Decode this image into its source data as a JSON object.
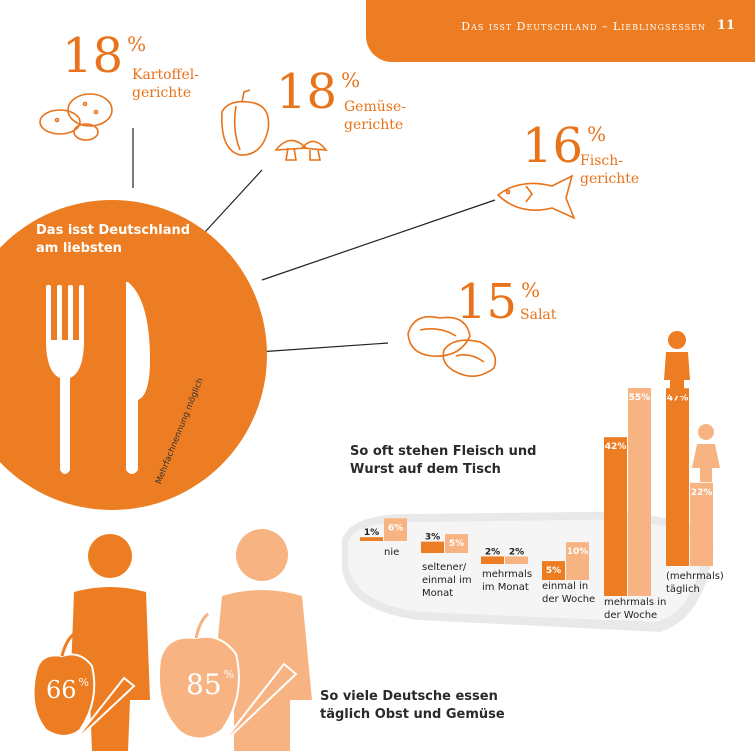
{
  "header": {
    "title": "Das isst Deutschland – Lieblingsessen",
    "page_number": "11"
  },
  "plate": {
    "title": "Das isst Deutschland am liebsten",
    "note": "Mehrfachnennung möglich"
  },
  "dishes": [
    {
      "value": "18",
      "unit": "%",
      "label": "Kartoffel-\ngerichte"
    },
    {
      "value": "18",
      "unit": "%",
      "label": "Gemüse-\ngerichte"
    },
    {
      "value": "16",
      "unit": "%",
      "label": "Fisch-\ngerichte"
    },
    {
      "value": "15",
      "unit": "%",
      "label": "Salat"
    }
  ],
  "chart_data": {
    "type": "bar",
    "title": "So oft stehen Fleisch und Wurst auf dem Tisch",
    "categories": [
      "nie",
      "seltener/ einmal im Monat",
      "mehrmals im Monat",
      "einmal in der Woche",
      "mehrmals in der Woche",
      "(mehrmals) täglich"
    ],
    "series": [
      {
        "values": [
          1,
          3,
          2,
          5,
          42,
          47
        ],
        "color": "#ec7d22"
      },
      {
        "values": [
          6,
          5,
          2,
          10,
          55,
          22
        ],
        "color": "#f7b482"
      }
    ],
    "value_labels": [
      [
        "1%",
        "6%"
      ],
      [
        "3%",
        "5%"
      ],
      [
        "2%",
        "2%"
      ],
      [
        "5%",
        "10%"
      ],
      [
        "42%",
        "55%"
      ],
      [
        "47%",
        "22%"
      ]
    ],
    "ylim": [
      0,
      55
    ]
  },
  "fruit": {
    "title": "So viele Deutsche essen täglich Obst und Gemüse",
    "men": {
      "value": "66",
      "unit": "%"
    },
    "women": {
      "value": "85",
      "unit": "%"
    }
  },
  "colors": {
    "orange": "#ec7d22",
    "light_orange": "#f7b482",
    "gray": "#e6e6e6"
  }
}
